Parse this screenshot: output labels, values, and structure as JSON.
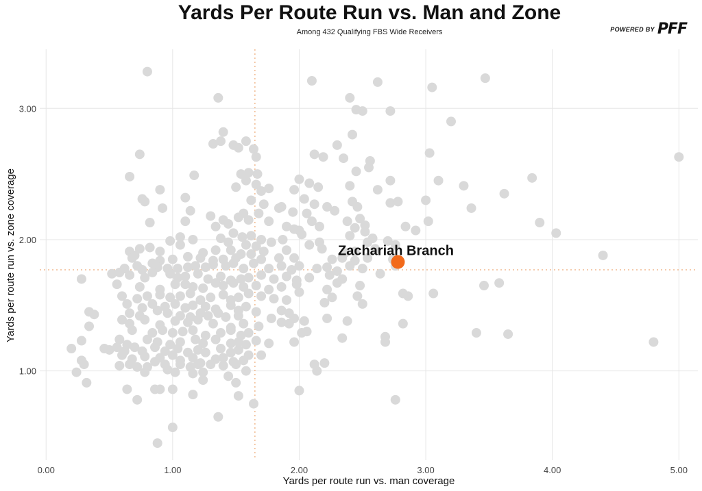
{
  "header": {
    "title": "Yards Per Route Run vs. Man and Zone",
    "subtitle": "Among 432 Qualifying FBS Wide Receivers"
  },
  "brand": {
    "prefix": "POWERED BY",
    "logo_text": "PFF"
  },
  "colors": {
    "point": "#d9d9d9",
    "highlight": "#f26a1b",
    "reference_line": "#f0b98f",
    "grid": "#e6e6e6"
  },
  "chart_data": {
    "type": "scatter",
    "title": "Yards Per Route Run vs. Man and Zone",
    "subtitle": "Among 432 Qualifying FBS Wide Receivers",
    "xlabel": "Yards per route run vs. man coverage",
    "ylabel": "Yards per route run vs. zone coverage",
    "xlim": [
      -0.05,
      5.15
    ],
    "ylim": [
      0.32,
      3.45
    ],
    "x_ticks": [
      0,
      1,
      2,
      3,
      4,
      5
    ],
    "x_tick_labels": [
      "0.00",
      "1.00",
      "2.00",
      "3.00",
      "4.00",
      "5.00"
    ],
    "y_ticks": [
      1,
      2,
      3
    ],
    "y_tick_labels": [
      "1.00",
      "2.00",
      "3.00"
    ],
    "grid": true,
    "reference_lines": {
      "x": 1.65,
      "y": 1.77
    },
    "highlight": {
      "label": "Zachariah Branch",
      "x": 2.78,
      "y": 1.83
    },
    "points": [
      [
        0.8,
        3.28
      ],
      [
        2.1,
        3.21
      ],
      [
        2.62,
        3.2
      ],
      [
        3.47,
        3.23
      ],
      [
        3.05,
        3.16
      ],
      [
        2.4,
        3.08
      ],
      [
        1.36,
        3.08
      ],
      [
        2.45,
        2.99
      ],
      [
        2.5,
        2.98
      ],
      [
        2.72,
        2.98
      ],
      [
        3.2,
        2.9
      ],
      [
        1.4,
        2.82
      ],
      [
        1.38,
        2.75
      ],
      [
        1.48,
        2.72
      ],
      [
        1.52,
        2.7
      ],
      [
        1.58,
        2.75
      ],
      [
        1.64,
        2.69
      ],
      [
        2.3,
        2.72
      ],
      [
        2.42,
        2.8
      ],
      [
        1.32,
        2.73
      ],
      [
        0.74,
        2.65
      ],
      [
        1.66,
        2.63
      ],
      [
        2.12,
        2.65
      ],
      [
        2.19,
        2.63
      ],
      [
        3.03,
        2.66
      ],
      [
        2.35,
        2.62
      ],
      [
        2.56,
        2.6
      ],
      [
        5.0,
        2.63
      ],
      [
        0.66,
        2.48
      ],
      [
        1.17,
        2.49
      ],
      [
        1.54,
        2.5
      ],
      [
        1.6,
        2.51
      ],
      [
        1.67,
        2.5
      ],
      [
        2.0,
        2.46
      ],
      [
        2.08,
        2.43
      ],
      [
        2.45,
        2.52
      ],
      [
        2.55,
        2.55
      ],
      [
        2.72,
        2.45
      ],
      [
        3.1,
        2.45
      ],
      [
        3.84,
        2.47
      ],
      [
        3.3,
        2.41
      ],
      [
        1.5,
        2.4
      ],
      [
        1.58,
        2.45
      ],
      [
        1.66,
        2.42
      ],
      [
        1.76,
        2.39
      ],
      [
        1.96,
        2.38
      ],
      [
        2.15,
        2.4
      ],
      [
        2.4,
        2.41
      ],
      [
        2.62,
        2.38
      ],
      [
        1.7,
        2.37
      ],
      [
        0.76,
        2.31
      ],
      [
        0.78,
        2.29
      ],
      [
        0.9,
        2.38
      ],
      [
        1.1,
        2.32
      ],
      [
        1.62,
        2.3
      ],
      [
        1.72,
        2.27
      ],
      [
        1.84,
        2.24
      ],
      [
        2.04,
        2.31
      ],
      [
        2.12,
        2.27
      ],
      [
        2.22,
        2.25
      ],
      [
        2.42,
        2.29
      ],
      [
        2.72,
        2.28
      ],
      [
        2.78,
        2.29
      ],
      [
        3.0,
        2.3
      ],
      [
        3.62,
        2.35
      ],
      [
        0.92,
        2.24
      ],
      [
        1.14,
        2.22
      ],
      [
        1.56,
        2.2
      ],
      [
        1.86,
        2.25
      ],
      [
        1.95,
        2.21
      ],
      [
        2.06,
        2.2
      ],
      [
        2.28,
        2.22
      ],
      [
        2.46,
        2.25
      ],
      [
        3.36,
        2.24
      ],
      [
        1.3,
        2.18
      ],
      [
        1.4,
        2.15
      ],
      [
        1.52,
        2.17
      ],
      [
        1.6,
        2.15
      ],
      [
        1.68,
        2.2
      ],
      [
        1.76,
        2.14
      ],
      [
        2.1,
        2.14
      ],
      [
        2.38,
        2.14
      ],
      [
        2.48,
        2.16
      ],
      [
        3.02,
        2.14
      ],
      [
        3.9,
        2.13
      ],
      [
        0.82,
        2.13
      ],
      [
        1.1,
        2.14
      ],
      [
        1.34,
        2.1
      ],
      [
        1.44,
        2.12
      ],
      [
        1.9,
        2.1
      ],
      [
        1.96,
        2.08
      ],
      [
        2.0,
        2.07
      ],
      [
        2.16,
        2.1
      ],
      [
        2.44,
        2.09
      ],
      [
        2.52,
        2.11
      ],
      [
        2.84,
        2.1
      ],
      [
        2.92,
        2.07
      ],
      [
        1.06,
        2.02
      ],
      [
        1.38,
        2.01
      ],
      [
        1.48,
        2.05
      ],
      [
        1.55,
        2.02
      ],
      [
        1.62,
        2.03
      ],
      [
        1.7,
        2.0
      ],
      [
        1.78,
        1.98
      ],
      [
        1.87,
        2.0
      ],
      [
        2.02,
        2.04
      ],
      [
        2.4,
        2.03
      ],
      [
        2.52,
        2.06
      ],
      [
        2.58,
        2.01
      ],
      [
        4.03,
        2.05
      ],
      [
        0.98,
        1.99
      ],
      [
        1.16,
        2.0
      ],
      [
        1.44,
        1.98
      ],
      [
        1.58,
        1.96
      ],
      [
        1.66,
        1.95
      ],
      [
        2.08,
        1.96
      ],
      [
        2.16,
        1.98
      ],
      [
        2.54,
        1.98
      ],
      [
        2.7,
        1.99
      ],
      [
        2.76,
        1.96
      ],
      [
        0.66,
        1.91
      ],
      [
        0.7,
        1.88
      ],
      [
        0.74,
        1.93
      ],
      [
        0.82,
        1.94
      ],
      [
        0.9,
        1.91
      ],
      [
        1.06,
        1.96
      ],
      [
        1.24,
        1.9
      ],
      [
        1.34,
        1.92
      ],
      [
        1.46,
        1.92
      ],
      [
        1.54,
        1.89
      ],
      [
        1.62,
        1.89
      ],
      [
        1.72,
        1.91
      ],
      [
        1.9,
        1.92
      ],
      [
        2.18,
        1.93
      ],
      [
        2.36,
        1.9
      ],
      [
        2.44,
        1.91
      ],
      [
        2.6,
        1.93
      ],
      [
        0.68,
        1.86
      ],
      [
        0.9,
        1.84
      ],
      [
        1.0,
        1.85
      ],
      [
        1.12,
        1.87
      ],
      [
        1.22,
        1.86
      ],
      [
        1.32,
        1.84
      ],
      [
        1.4,
        1.85
      ],
      [
        1.5,
        1.86
      ],
      [
        1.7,
        1.85
      ],
      [
        1.84,
        1.86
      ],
      [
        1.96,
        1.86
      ],
      [
        2.26,
        1.85
      ],
      [
        2.34,
        1.86
      ],
      [
        2.44,
        1.84
      ],
      [
        2.54,
        1.86
      ],
      [
        2.74,
        1.85
      ],
      [
        4.4,
        1.88
      ],
      [
        0.58,
        1.75
      ],
      [
        0.62,
        1.78
      ],
      [
        0.72,
        1.8
      ],
      [
        0.76,
        1.77
      ],
      [
        0.84,
        1.82
      ],
      [
        0.88,
        1.79
      ],
      [
        0.96,
        1.78
      ],
      [
        1.04,
        1.78
      ],
      [
        1.12,
        1.79
      ],
      [
        1.18,
        1.8
      ],
      [
        1.26,
        1.79
      ],
      [
        1.32,
        1.81
      ],
      [
        1.42,
        1.8
      ],
      [
        1.48,
        1.82
      ],
      [
        1.56,
        1.78
      ],
      [
        1.64,
        1.82
      ],
      [
        1.76,
        1.78
      ],
      [
        1.86,
        1.8
      ],
      [
        1.94,
        1.77
      ],
      [
        2.0,
        1.8
      ],
      [
        2.14,
        1.78
      ],
      [
        2.22,
        1.79
      ],
      [
        2.3,
        1.76
      ],
      [
        2.4,
        1.8
      ],
      [
        2.5,
        1.78
      ],
      [
        2.76,
        1.8
      ],
      [
        0.52,
        1.74
      ],
      [
        0.66,
        1.73
      ],
      [
        0.78,
        1.71
      ],
      [
        0.84,
        1.75
      ],
      [
        0.98,
        1.74
      ],
      [
        1.04,
        1.71
      ],
      [
        1.1,
        1.72
      ],
      [
        1.2,
        1.74
      ],
      [
        1.28,
        1.7
      ],
      [
        1.38,
        1.72
      ],
      [
        1.46,
        1.69
      ],
      [
        1.54,
        1.7
      ],
      [
        1.6,
        1.71
      ],
      [
        1.7,
        1.73
      ],
      [
        1.8,
        1.7
      ],
      [
        1.9,
        1.72
      ],
      [
        1.98,
        1.69
      ],
      [
        2.08,
        1.71
      ],
      [
        2.24,
        1.73
      ],
      [
        2.34,
        1.7
      ],
      [
        2.64,
        1.74
      ],
      [
        0.28,
        1.7
      ],
      [
        0.56,
        1.66
      ],
      [
        0.74,
        1.64
      ],
      [
        0.9,
        1.62
      ],
      [
        1.02,
        1.66
      ],
      [
        1.1,
        1.66
      ],
      [
        1.16,
        1.64
      ],
      [
        1.24,
        1.63
      ],
      [
        1.34,
        1.67
      ],
      [
        1.4,
        1.65
      ],
      [
        1.48,
        1.67
      ],
      [
        1.56,
        1.64
      ],
      [
        1.66,
        1.65
      ],
      [
        1.76,
        1.62
      ],
      [
        1.86,
        1.64
      ],
      [
        1.98,
        1.66
      ],
      [
        2.0,
        1.6
      ],
      [
        2.22,
        1.62
      ],
      [
        2.3,
        1.67
      ],
      [
        2.48,
        1.65
      ],
      [
        3.46,
        1.65
      ],
      [
        3.58,
        1.67
      ],
      [
        0.6,
        1.57
      ],
      [
        0.72,
        1.55
      ],
      [
        0.8,
        1.57
      ],
      [
        0.9,
        1.58
      ],
      [
        0.98,
        1.56
      ],
      [
        1.06,
        1.57
      ],
      [
        1.14,
        1.59
      ],
      [
        1.22,
        1.54
      ],
      [
        1.3,
        1.56
      ],
      [
        1.4,
        1.58
      ],
      [
        1.46,
        1.54
      ],
      [
        1.52,
        1.56
      ],
      [
        1.6,
        1.59
      ],
      [
        1.7,
        1.57
      ],
      [
        1.8,
        1.55
      ],
      [
        1.9,
        1.54
      ],
      [
        2.26,
        1.56
      ],
      [
        2.46,
        1.57
      ],
      [
        2.82,
        1.59
      ],
      [
        2.86,
        1.57
      ],
      [
        3.06,
        1.59
      ],
      [
        0.64,
        1.51
      ],
      [
        0.76,
        1.48
      ],
      [
        0.84,
        1.51
      ],
      [
        0.94,
        1.49
      ],
      [
        1.02,
        1.51
      ],
      [
        1.1,
        1.48
      ],
      [
        1.16,
        1.5
      ],
      [
        1.26,
        1.49
      ],
      [
        1.34,
        1.47
      ],
      [
        1.46,
        1.5
      ],
      [
        1.52,
        1.46
      ],
      [
        1.58,
        1.49
      ],
      [
        1.66,
        1.45
      ],
      [
        1.86,
        1.46
      ],
      [
        1.92,
        1.44
      ],
      [
        2.2,
        1.52
      ],
      [
        2.5,
        1.51
      ],
      [
        0.34,
        1.45
      ],
      [
        0.38,
        1.43
      ],
      [
        0.66,
        1.44
      ],
      [
        0.74,
        1.42
      ],
      [
        0.88,
        1.46
      ],
      [
        0.96,
        1.44
      ],
      [
        1.06,
        1.42
      ],
      [
        1.14,
        1.41
      ],
      [
        1.22,
        1.44
      ],
      [
        1.28,
        1.42
      ],
      [
        1.36,
        1.44
      ],
      [
        1.42,
        1.41
      ],
      [
        1.52,
        1.42
      ],
      [
        1.78,
        1.4
      ],
      [
        1.96,
        1.4
      ],
      [
        2.22,
        1.4
      ],
      [
        0.34,
        1.34
      ],
      [
        0.6,
        1.39
      ],
      [
        0.66,
        1.36
      ],
      [
        0.78,
        1.39
      ],
      [
        0.9,
        1.35
      ],
      [
        1.02,
        1.38
      ],
      [
        1.12,
        1.37
      ],
      [
        1.2,
        1.39
      ],
      [
        1.32,
        1.36
      ],
      [
        1.46,
        1.33
      ],
      [
        1.56,
        1.36
      ],
      [
        1.68,
        1.34
      ],
      [
        1.86,
        1.37
      ],
      [
        1.92,
        1.36
      ],
      [
        2.04,
        1.38
      ],
      [
        2.38,
        1.38
      ],
      [
        2.82,
        1.36
      ],
      [
        0.68,
        1.31
      ],
      [
        0.84,
        1.29
      ],
      [
        0.92,
        1.31
      ],
      [
        1.0,
        1.29
      ],
      [
        1.08,
        1.3
      ],
      [
        1.16,
        1.31
      ],
      [
        1.26,
        1.27
      ],
      [
        1.38,
        1.29
      ],
      [
        1.46,
        1.31
      ],
      [
        1.54,
        1.27
      ],
      [
        1.6,
        1.29
      ],
      [
        1.96,
        1.22
      ],
      [
        2.02,
        1.29
      ],
      [
        2.06,
        1.3
      ],
      [
        2.34,
        1.25
      ],
      [
        2.68,
        1.26
      ],
      [
        3.4,
        1.29
      ],
      [
        3.65,
        1.28
      ],
      [
        0.28,
        1.23
      ],
      [
        0.58,
        1.24
      ],
      [
        0.64,
        1.2
      ],
      [
        0.8,
        1.24
      ],
      [
        0.88,
        1.22
      ],
      [
        0.98,
        1.2
      ],
      [
        1.06,
        1.22
      ],
      [
        1.18,
        1.24
      ],
      [
        1.24,
        1.21
      ],
      [
        1.34,
        1.24
      ],
      [
        1.46,
        1.21
      ],
      [
        1.52,
        1.22
      ],
      [
        1.58,
        1.2
      ],
      [
        1.66,
        1.23
      ],
      [
        1.76,
        1.21
      ],
      [
        2.68,
        1.22
      ],
      [
        4.8,
        1.22
      ],
      [
        0.2,
        1.17
      ],
      [
        0.46,
        1.17
      ],
      [
        0.5,
        1.16
      ],
      [
        0.56,
        1.18
      ],
      [
        0.62,
        1.15
      ],
      [
        0.7,
        1.18
      ],
      [
        0.76,
        1.15
      ],
      [
        0.86,
        1.18
      ],
      [
        0.94,
        1.15
      ],
      [
        1.04,
        1.17
      ],
      [
        1.12,
        1.14
      ],
      [
        1.2,
        1.16
      ],
      [
        1.26,
        1.14
      ],
      [
        1.38,
        1.17
      ],
      [
        1.46,
        1.14
      ],
      [
        1.52,
        1.16
      ],
      [
        1.6,
        1.12
      ],
      [
        1.7,
        1.12
      ],
      [
        0.28,
        1.08
      ],
      [
        0.6,
        1.12
      ],
      [
        0.68,
        1.09
      ],
      [
        0.78,
        1.11
      ],
      [
        0.86,
        1.07
      ],
      [
        0.9,
        1.1
      ],
      [
        1.0,
        1.12
      ],
      [
        1.06,
        1.08
      ],
      [
        1.16,
        1.1
      ],
      [
        1.22,
        1.06
      ],
      [
        1.34,
        1.09
      ],
      [
        1.4,
        1.1
      ],
      [
        1.48,
        1.07
      ],
      [
        1.56,
        1.08
      ],
      [
        0.3,
        1.05
      ],
      [
        0.58,
        1.04
      ],
      [
        0.66,
        1.05
      ],
      [
        0.72,
        1.03
      ],
      [
        0.8,
        1.03
      ],
      [
        0.94,
        1.05
      ],
      [
        1.06,
        1.05
      ],
      [
        1.14,
        1.03
      ],
      [
        1.2,
        1.05
      ],
      [
        1.3,
        1.05
      ],
      [
        1.4,
        1.04
      ],
      [
        1.5,
        1.05
      ],
      [
        2.12,
        1.05
      ],
      [
        2.2,
        1.06
      ],
      [
        0.24,
        0.99
      ],
      [
        0.78,
        0.99
      ],
      [
        0.96,
        1.01
      ],
      [
        1.02,
        0.99
      ],
      [
        1.16,
        0.98
      ],
      [
        1.24,
        0.99
      ],
      [
        1.44,
        0.96
      ],
      [
        1.58,
        1.0
      ],
      [
        2.14,
        1.0
      ],
      [
        0.32,
        0.91
      ],
      [
        1.24,
        0.93
      ],
      [
        1.5,
        0.91
      ],
      [
        0.64,
        0.86
      ],
      [
        0.86,
        0.86
      ],
      [
        0.9,
        0.86
      ],
      [
        1.0,
        0.86
      ],
      [
        2.0,
        0.85
      ],
      [
        0.72,
        0.78
      ],
      [
        1.16,
        0.82
      ],
      [
        1.52,
        0.81
      ],
      [
        1.64,
        0.75
      ],
      [
        2.76,
        0.78
      ],
      [
        1.36,
        0.65
      ],
      [
        1.0,
        0.57
      ],
      [
        0.88,
        0.45
      ]
    ]
  }
}
